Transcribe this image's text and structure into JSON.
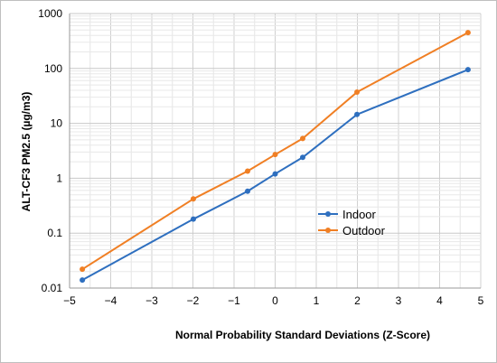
{
  "chart_data": {
    "type": "line",
    "title": "",
    "xlabel": "Normal Probability Standard Deviations (Z-Score)",
    "ylabel": "ALT-CF3 PM2.5 (µg/m3)",
    "xlim": [
      -5,
      5
    ],
    "ylim": [
      0.01,
      1000
    ],
    "yscale": "log",
    "grid": true,
    "legend_position": "center-right",
    "x_ticks": [
      "−5",
      "−4",
      "−3",
      "−2",
      "−1",
      "0",
      "1",
      "2",
      "3",
      "4",
      "5"
    ],
    "y_ticks": [
      "0.01",
      "0.1",
      "1",
      "10",
      "100",
      "1000"
    ],
    "series": [
      {
        "name": "Indoor",
        "color": "#2e6fbf",
        "x": [
          -4.69,
          -1.99,
          -0.67,
          0,
          0.67,
          1.99,
          4.69
        ],
        "y": [
          0.014,
          0.18,
          0.58,
          1.2,
          2.4,
          14.5,
          95
        ]
      },
      {
        "name": "Outdoor",
        "color": "#f07f24",
        "x": [
          -4.69,
          -1.99,
          -0.67,
          0,
          0.67,
          1.99,
          4.69
        ],
        "y": [
          0.022,
          0.42,
          1.35,
          2.7,
          5.3,
          37,
          450
        ]
      }
    ]
  }
}
